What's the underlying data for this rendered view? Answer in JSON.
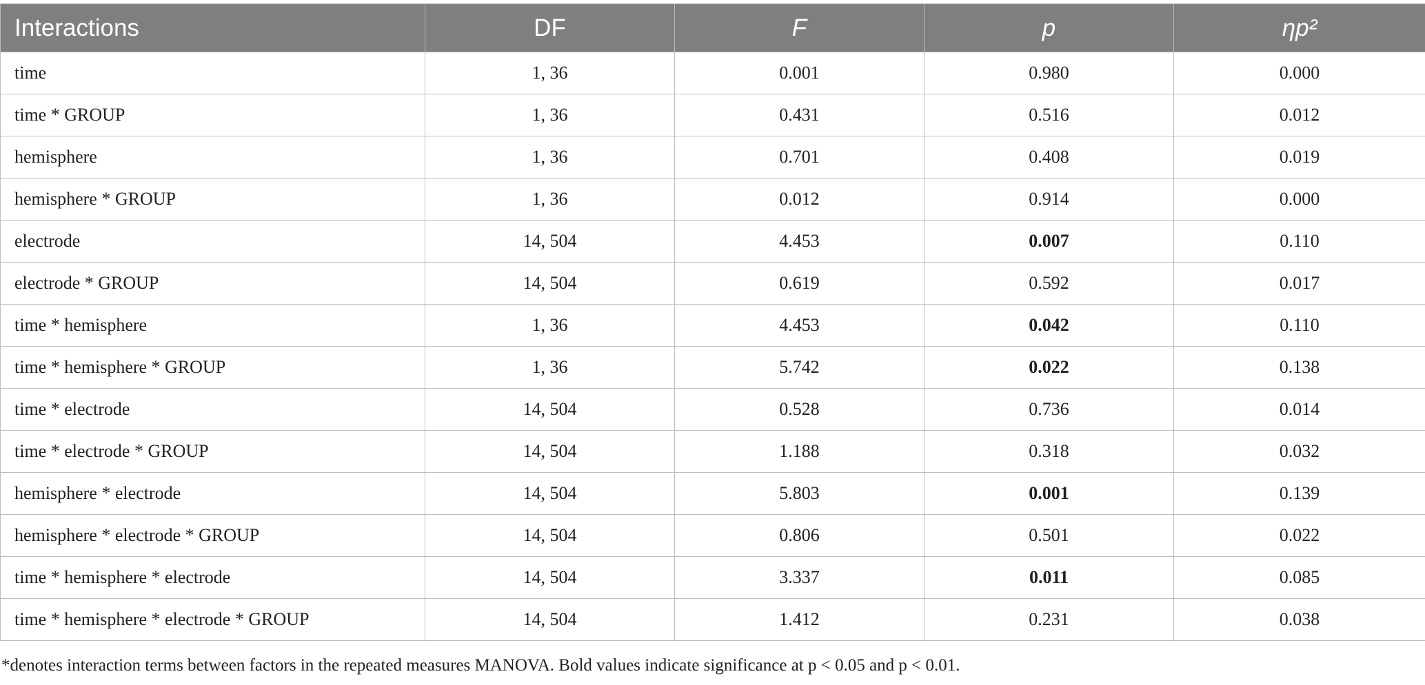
{
  "table": {
    "headers": [
      "Interactions",
      "DF",
      "F",
      "p",
      "ηp²"
    ],
    "rows": [
      [
        "time",
        "1, 36",
        "0.001",
        "0.980",
        "0.000"
      ],
      [
        "time * GROUP",
        "1, 36",
        "0.431",
        "0.516",
        "0.012"
      ],
      [
        "hemisphere",
        "1, 36",
        "0.701",
        "0.408",
        "0.019"
      ],
      [
        "hemisphere * GROUP",
        "1, 36",
        "0.012",
        "0.914",
        "0.000"
      ],
      [
        "electrode",
        "14, 504",
        "4.453",
        "0.007",
        "0.110"
      ],
      [
        "electrode * GROUP",
        "14, 504",
        "0.619",
        "0.592",
        "0.017"
      ],
      [
        "time * hemisphere",
        "1, 36",
        "4.453",
        "0.042",
        "0.110"
      ],
      [
        "time * hemisphere * GROUP",
        "1, 36",
        "5.742",
        "0.022",
        "0.138"
      ],
      [
        "time * electrode",
        "14, 504",
        "0.528",
        "0.736",
        "0.014"
      ],
      [
        "time * electrode * GROUP",
        "14, 504",
        "1.188",
        "0.318",
        "0.032"
      ],
      [
        "hemisphere * electrode",
        "14, 504",
        "5.803",
        "0.001",
        "0.139"
      ],
      [
        "hemisphere * electrode * GROUP",
        "14, 504",
        "0.806",
        "0.501",
        "0.022"
      ],
      [
        "time * hemisphere * electrode",
        "14, 504",
        "3.337",
        "0.011",
        "0.085"
      ],
      [
        "time * hemisphere * electrode * GROUP",
        "14, 504",
        "1.412",
        "0.231",
        "0.038"
      ]
    ],
    "bold_cells": [
      [
        4,
        3
      ],
      [
        6,
        3
      ],
      [
        7,
        3
      ],
      [
        10,
        3
      ],
      [
        12,
        3
      ]
    ]
  },
  "footnote": "*denotes interaction terms between factors in the repeated measures MANOVA. Bold values indicate significance at p < 0.05 and p < 0.01."
}
